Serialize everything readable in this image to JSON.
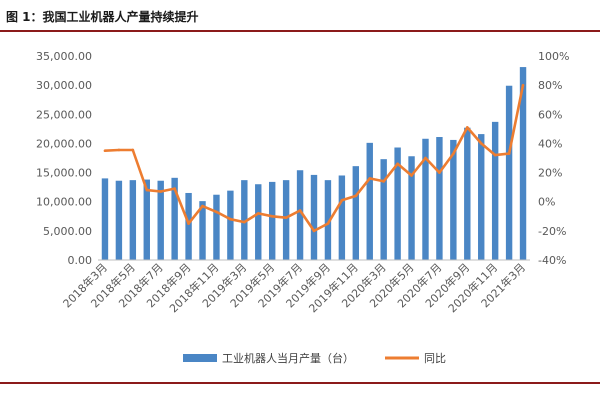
{
  "figure_title": "图 1：我国工业机器人产量持续提升",
  "colors": {
    "bar": "#4a86c5",
    "line": "#ed7d31",
    "rule": "#8b1a1a",
    "axis_text": "#595959"
  },
  "chart_data": {
    "type": "bar",
    "title": "",
    "categories": [
      "2018年3月",
      "2018年4月",
      "2018年5月",
      "2018年6月",
      "2018年7月",
      "2018年8月",
      "2018年9月",
      "2018年10月",
      "2018年11月",
      "2018年12月",
      "2019年3月",
      "2019年4月",
      "2019年5月",
      "2019年6月",
      "2019年7月",
      "2019年8月",
      "2019年9月",
      "2019年10月",
      "2019年11月",
      "2019年12月",
      "2020年3月",
      "2020年4月",
      "2020年5月",
      "2020年6月",
      "2020年7月",
      "2020年8月",
      "2020年9月",
      "2020年10月",
      "2020年11月",
      "2020年12月",
      "2021年3月"
    ],
    "x_tick_labels": [
      "2018年3月",
      "2018年5月",
      "2018年7月",
      "2018年9月",
      "2018年11月",
      "2019年3月",
      "2019年5月",
      "2019年7月",
      "2019年9月",
      "2019年11月",
      "2020年3月",
      "2020年5月",
      "2020年7月",
      "2020年9月",
      "2020年11月",
      "2021年3月"
    ],
    "series": [
      {
        "name": "工业机器人当月产量（台）",
        "type": "bar",
        "axis": "left",
        "values": [
          14000,
          13600,
          13700,
          13800,
          13600,
          14100,
          11500,
          10100,
          11200,
          11900,
          13700,
          13000,
          13400,
          13700,
          15400,
          14600,
          13700,
          14500,
          16100,
          20100,
          17300,
          19300,
          17800,
          20800,
          21100,
          20600,
          22700,
          21600,
          23700,
          29900,
          33100
        ]
      },
      {
        "name": "同比",
        "type": "line",
        "axis": "right",
        "values": [
          35,
          35.5,
          35.5,
          8,
          7,
          9,
          -15,
          -3,
          -7,
          -12,
          -14,
          -8,
          -10,
          -11,
          -6,
          -20,
          -15,
          1,
          4,
          16,
          14,
          26,
          18,
          30,
          20,
          33,
          51,
          40,
          32,
          33,
          80
        ]
      }
    ],
    "y_left": {
      "min": 0,
      "max": 35000,
      "ticks": [
        "0.00",
        "5,000.00",
        "10,000.00",
        "15,000.00",
        "20,000.00",
        "25,000.00",
        "30,000.00",
        "35,000.00"
      ]
    },
    "y_right": {
      "min": -40,
      "max": 100,
      "ticks": [
        "-40%",
        "-20%",
        "0%",
        "20%",
        "40%",
        "60%",
        "80%",
        "100%"
      ]
    },
    "legend": {
      "placement": "bottom",
      "entries": [
        "工业机器人当月产量（台）",
        "同比"
      ]
    },
    "grid": false
  }
}
